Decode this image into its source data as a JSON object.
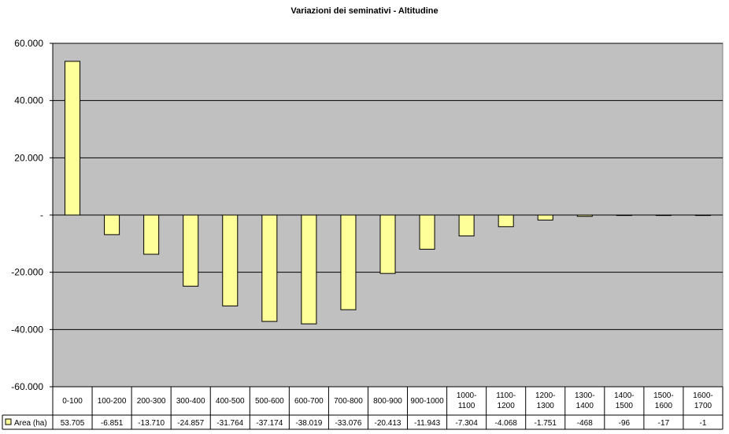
{
  "chart_data": {
    "type": "bar",
    "title": "Variazioni dei seminativi - Altitudine",
    "xlabel": "",
    "ylabel": "",
    "ylim": [
      -60000,
      60000
    ],
    "yticks": [
      60000,
      40000,
      20000,
      0,
      -20000,
      -40000,
      -60000
    ],
    "ytick_labels": [
      "60.000",
      "40.000",
      "20.000",
      "-",
      "-20.000",
      "-40.000",
      "-60.000"
    ],
    "grid": true,
    "legend": "data-table-left",
    "categories": [
      [
        "0-100"
      ],
      [
        "100-200"
      ],
      [
        "200-300"
      ],
      [
        "300-400"
      ],
      [
        "400-500"
      ],
      [
        "500-600"
      ],
      [
        "600-700"
      ],
      [
        "700-800"
      ],
      [
        "800-900"
      ],
      [
        "900-1000"
      ],
      [
        "1000-",
        "1100"
      ],
      [
        "1100-",
        "1200"
      ],
      [
        "1200-",
        "1300"
      ],
      [
        "1300-",
        "1400"
      ],
      [
        "1400-",
        "1500"
      ],
      [
        "1500-",
        "1600"
      ],
      [
        "1600-",
        "1700"
      ]
    ],
    "series": [
      {
        "name": "Area (ha)",
        "color": "#ffff99",
        "edge_color": "#000000",
        "values": [
          53705,
          -6851,
          -13710,
          -24857,
          -31764,
          -37174,
          -38019,
          -33076,
          -20413,
          -11943,
          -7304,
          -4068,
          -1751,
          -468,
          -96,
          -17,
          -1
        ],
        "labels": [
          "53.705",
          "-6.851",
          "-13.710",
          "-24.857",
          "-31.764",
          "-37.174",
          "-38.019",
          "-33.076",
          "-20.413",
          "-11.943",
          "-7.304",
          "-4.068",
          "-1.751",
          "-468",
          "-96",
          "-17",
          "-1"
        ]
      }
    ],
    "plot_background": "#c0c0c0"
  }
}
